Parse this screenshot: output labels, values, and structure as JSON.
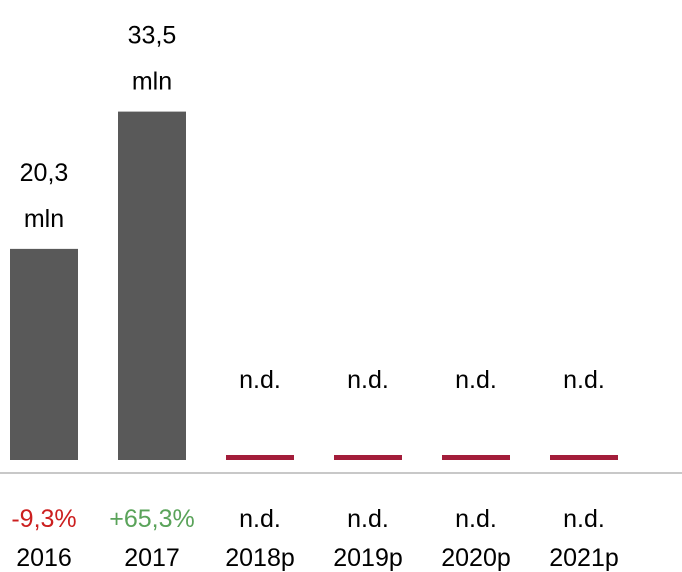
{
  "chart_data": {
    "type": "bar",
    "categories": [
      "2016",
      "2017",
      "2018p",
      "2019p",
      "2020p",
      "2021p"
    ],
    "values": [
      20.3,
      33.5,
      null,
      null,
      null,
      null
    ],
    "value_labels": [
      [
        "20,3",
        "mln"
      ],
      [
        "33,5",
        "mln"
      ],
      [
        "n.d."
      ],
      [
        "n.d."
      ],
      [
        "n.d."
      ],
      [
        "n.d."
      ]
    ],
    "changes": [
      "-9,3%",
      "+65,3%",
      "n.d.",
      "n.d.",
      "n.d.",
      "n.d."
    ],
    "change_colors": [
      "#cc1f1f",
      "#5aa35a",
      "#000000",
      "#000000",
      "#000000",
      "#000000"
    ],
    "bar_color": "#595959",
    "na_marker_color": "#a31d3a",
    "axis_color": "#c8c8c8",
    "title": "",
    "xlabel": "",
    "ylabel": "",
    "ylim": [
      0,
      40
    ],
    "grid": false,
    "legend": "none"
  }
}
